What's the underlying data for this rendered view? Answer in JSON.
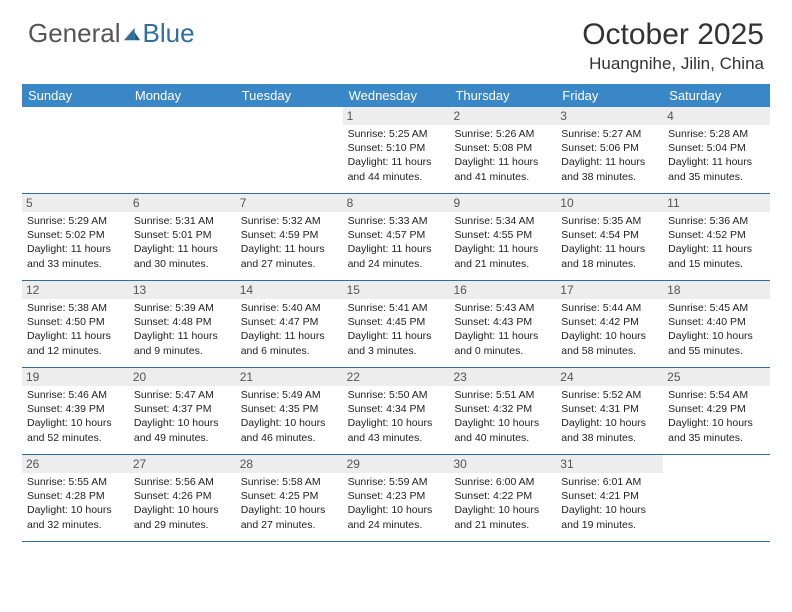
{
  "logo": {
    "general": "General",
    "blue": "Blue"
  },
  "title": "October 2025",
  "location": "Huangnihe, Jilin, China",
  "header_bg": "#3a87c8",
  "dow": [
    "Sunday",
    "Monday",
    "Tuesday",
    "Wednesday",
    "Thursday",
    "Friday",
    "Saturday"
  ],
  "weeks": [
    [
      {
        "empty": true
      },
      {
        "empty": true
      },
      {
        "empty": true
      },
      {
        "num": "1",
        "sunrise": "Sunrise: 5:25 AM",
        "sunset": "Sunset: 5:10 PM",
        "day1": "Daylight: 11 hours",
        "day2": "and 44 minutes."
      },
      {
        "num": "2",
        "sunrise": "Sunrise: 5:26 AM",
        "sunset": "Sunset: 5:08 PM",
        "day1": "Daylight: 11 hours",
        "day2": "and 41 minutes."
      },
      {
        "num": "3",
        "sunrise": "Sunrise: 5:27 AM",
        "sunset": "Sunset: 5:06 PM",
        "day1": "Daylight: 11 hours",
        "day2": "and 38 minutes."
      },
      {
        "num": "4",
        "sunrise": "Sunrise: 5:28 AM",
        "sunset": "Sunset: 5:04 PM",
        "day1": "Daylight: 11 hours",
        "day2": "and 35 minutes."
      }
    ],
    [
      {
        "num": "5",
        "sunrise": "Sunrise: 5:29 AM",
        "sunset": "Sunset: 5:02 PM",
        "day1": "Daylight: 11 hours",
        "day2": "and 33 minutes."
      },
      {
        "num": "6",
        "sunrise": "Sunrise: 5:31 AM",
        "sunset": "Sunset: 5:01 PM",
        "day1": "Daylight: 11 hours",
        "day2": "and 30 minutes."
      },
      {
        "num": "7",
        "sunrise": "Sunrise: 5:32 AM",
        "sunset": "Sunset: 4:59 PM",
        "day1": "Daylight: 11 hours",
        "day2": "and 27 minutes."
      },
      {
        "num": "8",
        "sunrise": "Sunrise: 5:33 AM",
        "sunset": "Sunset: 4:57 PM",
        "day1": "Daylight: 11 hours",
        "day2": "and 24 minutes."
      },
      {
        "num": "9",
        "sunrise": "Sunrise: 5:34 AM",
        "sunset": "Sunset: 4:55 PM",
        "day1": "Daylight: 11 hours",
        "day2": "and 21 minutes."
      },
      {
        "num": "10",
        "sunrise": "Sunrise: 5:35 AM",
        "sunset": "Sunset: 4:54 PM",
        "day1": "Daylight: 11 hours",
        "day2": "and 18 minutes."
      },
      {
        "num": "11",
        "sunrise": "Sunrise: 5:36 AM",
        "sunset": "Sunset: 4:52 PM",
        "day1": "Daylight: 11 hours",
        "day2": "and 15 minutes."
      }
    ],
    [
      {
        "num": "12",
        "sunrise": "Sunrise: 5:38 AM",
        "sunset": "Sunset: 4:50 PM",
        "day1": "Daylight: 11 hours",
        "day2": "and 12 minutes."
      },
      {
        "num": "13",
        "sunrise": "Sunrise: 5:39 AM",
        "sunset": "Sunset: 4:48 PM",
        "day1": "Daylight: 11 hours",
        "day2": "and 9 minutes."
      },
      {
        "num": "14",
        "sunrise": "Sunrise: 5:40 AM",
        "sunset": "Sunset: 4:47 PM",
        "day1": "Daylight: 11 hours",
        "day2": "and 6 minutes."
      },
      {
        "num": "15",
        "sunrise": "Sunrise: 5:41 AM",
        "sunset": "Sunset: 4:45 PM",
        "day1": "Daylight: 11 hours",
        "day2": "and 3 minutes."
      },
      {
        "num": "16",
        "sunrise": "Sunrise: 5:43 AM",
        "sunset": "Sunset: 4:43 PM",
        "day1": "Daylight: 11 hours",
        "day2": "and 0 minutes."
      },
      {
        "num": "17",
        "sunrise": "Sunrise: 5:44 AM",
        "sunset": "Sunset: 4:42 PM",
        "day1": "Daylight: 10 hours",
        "day2": "and 58 minutes."
      },
      {
        "num": "18",
        "sunrise": "Sunrise: 5:45 AM",
        "sunset": "Sunset: 4:40 PM",
        "day1": "Daylight: 10 hours",
        "day2": "and 55 minutes."
      }
    ],
    [
      {
        "num": "19",
        "sunrise": "Sunrise: 5:46 AM",
        "sunset": "Sunset: 4:39 PM",
        "day1": "Daylight: 10 hours",
        "day2": "and 52 minutes."
      },
      {
        "num": "20",
        "sunrise": "Sunrise: 5:47 AM",
        "sunset": "Sunset: 4:37 PM",
        "day1": "Daylight: 10 hours",
        "day2": "and 49 minutes."
      },
      {
        "num": "21",
        "sunrise": "Sunrise: 5:49 AM",
        "sunset": "Sunset: 4:35 PM",
        "day1": "Daylight: 10 hours",
        "day2": "and 46 minutes."
      },
      {
        "num": "22",
        "sunrise": "Sunrise: 5:50 AM",
        "sunset": "Sunset: 4:34 PM",
        "day1": "Daylight: 10 hours",
        "day2": "and 43 minutes."
      },
      {
        "num": "23",
        "sunrise": "Sunrise: 5:51 AM",
        "sunset": "Sunset: 4:32 PM",
        "day1": "Daylight: 10 hours",
        "day2": "and 40 minutes."
      },
      {
        "num": "24",
        "sunrise": "Sunrise: 5:52 AM",
        "sunset": "Sunset: 4:31 PM",
        "day1": "Daylight: 10 hours",
        "day2": "and 38 minutes."
      },
      {
        "num": "25",
        "sunrise": "Sunrise: 5:54 AM",
        "sunset": "Sunset: 4:29 PM",
        "day1": "Daylight: 10 hours",
        "day2": "and 35 minutes."
      }
    ],
    [
      {
        "num": "26",
        "sunrise": "Sunrise: 5:55 AM",
        "sunset": "Sunset: 4:28 PM",
        "day1": "Daylight: 10 hours",
        "day2": "and 32 minutes."
      },
      {
        "num": "27",
        "sunrise": "Sunrise: 5:56 AM",
        "sunset": "Sunset: 4:26 PM",
        "day1": "Daylight: 10 hours",
        "day2": "and 29 minutes."
      },
      {
        "num": "28",
        "sunrise": "Sunrise: 5:58 AM",
        "sunset": "Sunset: 4:25 PM",
        "day1": "Daylight: 10 hours",
        "day2": "and 27 minutes."
      },
      {
        "num": "29",
        "sunrise": "Sunrise: 5:59 AM",
        "sunset": "Sunset: 4:23 PM",
        "day1": "Daylight: 10 hours",
        "day2": "and 24 minutes."
      },
      {
        "num": "30",
        "sunrise": "Sunrise: 6:00 AM",
        "sunset": "Sunset: 4:22 PM",
        "day1": "Daylight: 10 hours",
        "day2": "and 21 minutes."
      },
      {
        "num": "31",
        "sunrise": "Sunrise: 6:01 AM",
        "sunset": "Sunset: 4:21 PM",
        "day1": "Daylight: 10 hours",
        "day2": "and 19 minutes."
      },
      {
        "empty": true
      }
    ]
  ]
}
